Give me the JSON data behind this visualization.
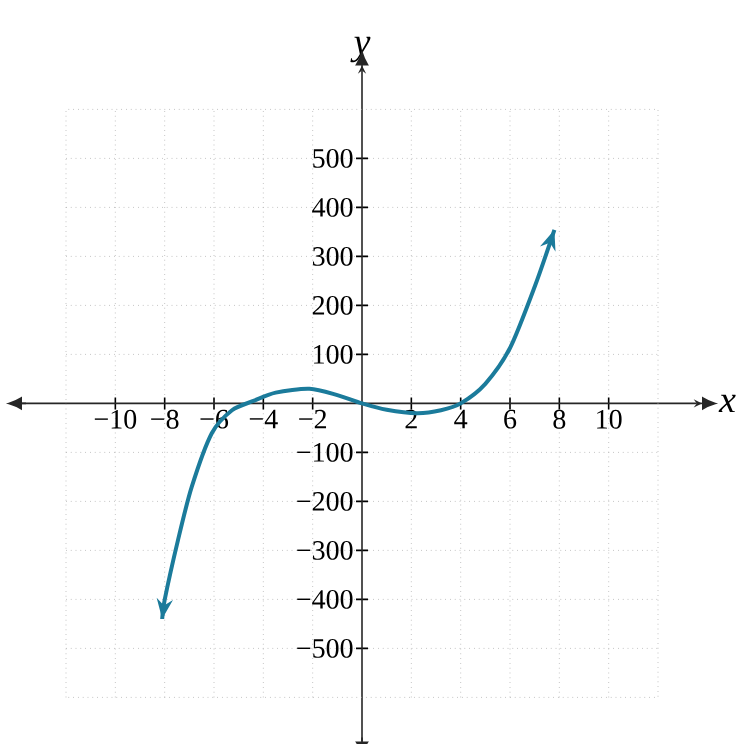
{
  "chart_data": {
    "type": "line",
    "xlabel": "x",
    "ylabel": "y",
    "xlim": [
      -12,
      12
    ],
    "ylim": [
      -600,
      600
    ],
    "xticks": [
      {
        "value": -10,
        "label": "−10"
      },
      {
        "value": -8,
        "label": "−8"
      },
      {
        "value": -6,
        "label": "−6"
      },
      {
        "value": -4,
        "label": "−4"
      },
      {
        "value": -2,
        "label": "−2"
      },
      2,
      4,
      6,
      8,
      10
    ],
    "yticks": [
      {
        "value": -500,
        "label": "−500"
      },
      {
        "value": -400,
        "label": "−400"
      },
      {
        "value": -300,
        "label": "−300"
      },
      {
        "value": -200,
        "label": "−200"
      },
      {
        "value": -100,
        "label": "−100"
      },
      100,
      200,
      300,
      400,
      500
    ],
    "grid": true,
    "series": [
      {
        "color": "#1b7b9b",
        "x": [
          -8.1,
          -8.0,
          -7.46,
          -6.9,
          -6.09,
          -5.27,
          -4.4,
          -3.5,
          -2.13,
          -1,
          0,
          1,
          2.24,
          3.2,
          4.0,
          5,
          6.0,
          7.0,
          7.8
        ],
        "values": [
          -440,
          -401,
          -279,
          -170,
          -61,
          -14,
          5,
          22,
          30,
          17,
          0,
          -13,
          -20,
          -14,
          0,
          40,
          113,
          238,
          354
        ]
      }
    ]
  }
}
